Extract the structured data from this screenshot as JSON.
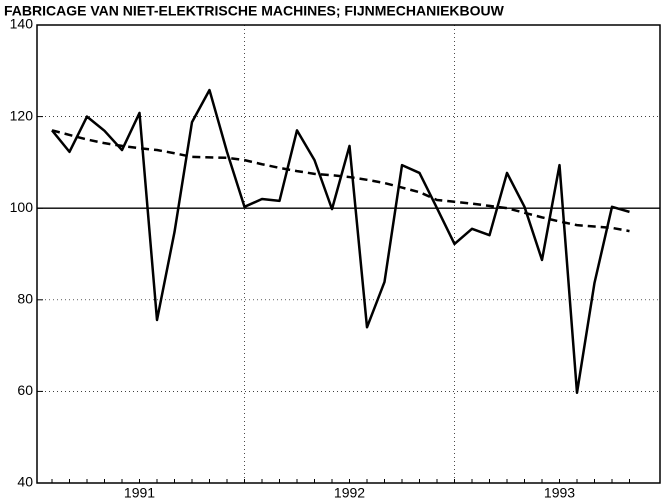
{
  "chart_data": {
    "type": "line",
    "title": "FABRICAGE VAN NIET-ELEKTRISCHE MACHINES; FIJNMECHANIEKBOUW",
    "categories": [
      null,
      null,
      null,
      null,
      null,
      "1991",
      null,
      null,
      null,
      null,
      null,
      null,
      null,
      null,
      null,
      null,
      null,
      "1992",
      null,
      null,
      null,
      null,
      null,
      null,
      null,
      null,
      null,
      null,
      null,
      "1993",
      null,
      null,
      null,
      null
    ],
    "series": [
      {
        "color": "#000000",
        "dash": false,
        "values": [
          117,
          112.3,
          120,
          116.9,
          112.7,
          120.8,
          75.6,
          94.8,
          118.8,
          125.8,
          112.3,
          100.3,
          102,
          101.6,
          117,
          110.5,
          99.8,
          113.6,
          74,
          83.9,
          109.4,
          107.7,
          100,
          92.2,
          95.5,
          94.1,
          107.7,
          100.3,
          88.7,
          109.4,
          59.7,
          83.7,
          100.3,
          99.2
        ]
      },
      {
        "color": "#000000",
        "dash": true,
        "values": [
          117,
          116,
          115,
          114.2,
          113.6,
          113.1,
          112.7,
          112,
          111.2,
          111.1,
          111,
          110.5,
          109.6,
          108.8,
          108.1,
          107.5,
          107.2,
          106.8,
          106.2,
          105.5,
          104.5,
          103.5,
          101.8,
          101.4,
          101,
          100.5,
          100,
          99,
          98,
          97.1,
          96.3,
          96,
          95.7,
          95
        ]
      }
    ],
    "ylim": [
      40,
      140
    ],
    "yticks": [
      40,
      60,
      80,
      100,
      120,
      140
    ],
    "grid": true,
    "reference_line": 100
  }
}
